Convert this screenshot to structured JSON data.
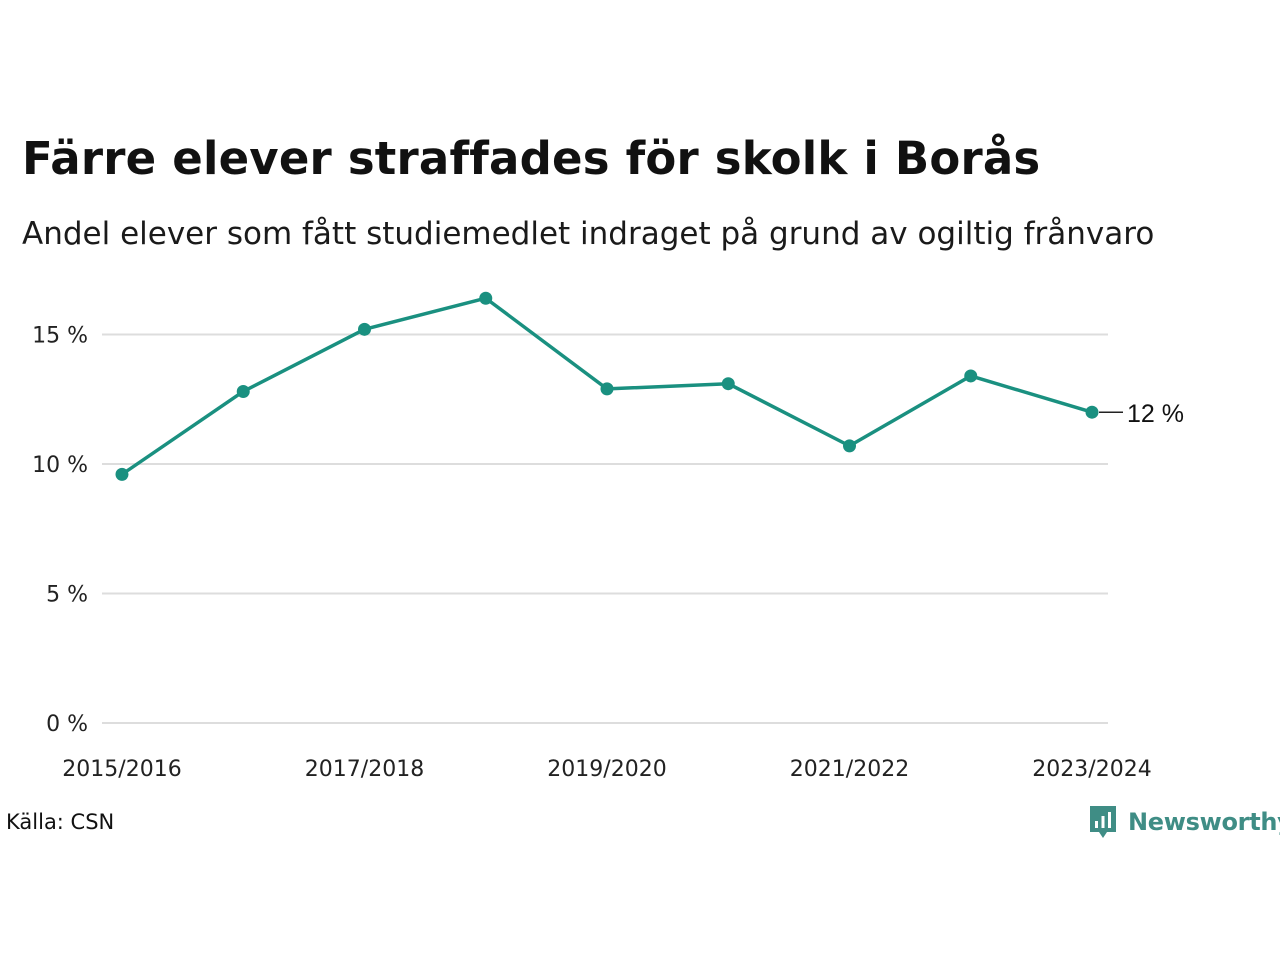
{
  "header": {
    "title": "Färre elever straffades för skolk i Borås",
    "subtitle": "Andel elever som fått studiemedlet indraget på grund av ogiltig frånvaro"
  },
  "footer": {
    "source": "Källa: CSN",
    "brand": "Newsworthy",
    "brand_icon": "newsworthy-logo-icon"
  },
  "colors": {
    "line": "#1a9080",
    "grid": "#dddddd",
    "brand": "#3f8d85"
  },
  "chart_data": {
    "type": "line",
    "title": "Färre elever straffades för skolk i Borås",
    "subtitle": "Andel elever som fått studiemedlet indraget på grund av ogiltig frånvaro",
    "categories": [
      "2015/2016",
      "2016/2017",
      "2017/2018",
      "2018/2019",
      "2019/2020",
      "2020/2021",
      "2021/2022",
      "2022/2023",
      "2023/2024"
    ],
    "series": [
      {
        "values": [
          9.6,
          12.8,
          15.2,
          16.4,
          12.9,
          13.1,
          10.7,
          13.4,
          12.0
        ]
      }
    ],
    "x_tick_labels": [
      "2015/2016",
      "2017/2018",
      "2019/2020",
      "2021/2022",
      "2023/2024"
    ],
    "y_ticks": [
      0,
      5,
      10,
      15
    ],
    "y_tick_labels": [
      "0 %",
      "5 %",
      "10 %",
      "15 %"
    ],
    "ylim": [
      0,
      17
    ],
    "grid": true,
    "end_label": "12 %",
    "xlabel": "",
    "ylabel": ""
  }
}
